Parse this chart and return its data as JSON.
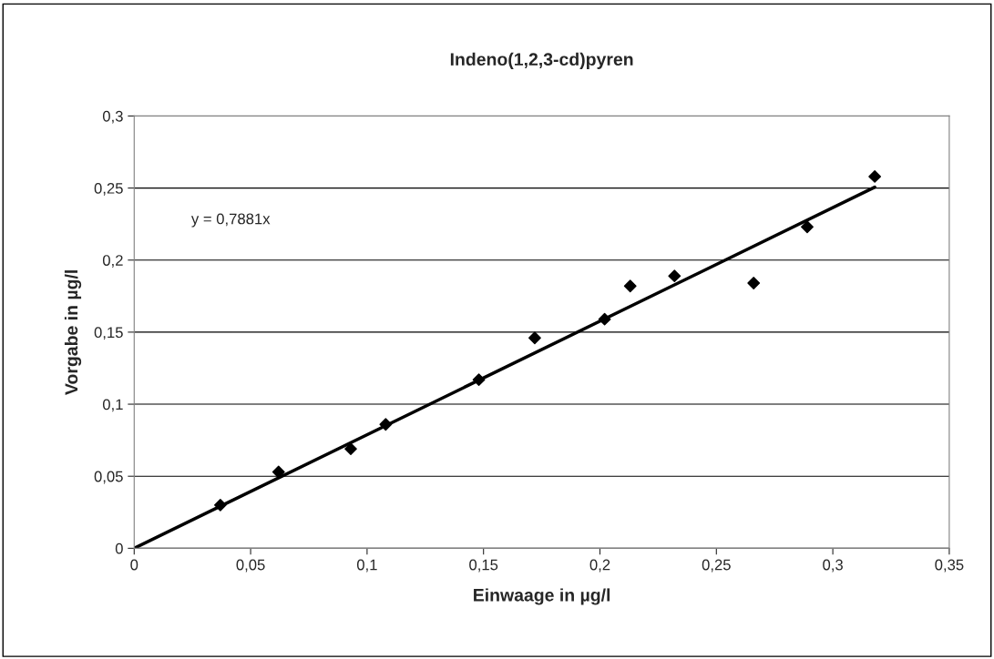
{
  "chart_data": {
    "type": "scatter",
    "title": "Indeno(1,2,3-cd)pyren",
    "xlabel": "Einwaage in µg/l",
    "ylabel": "Vorgabe in µg/l",
    "x": [
      0.037,
      0.062,
      0.093,
      0.108,
      0.148,
      0.172,
      0.202,
      0.213,
      0.232,
      0.266,
      0.289,
      0.318
    ],
    "series": [
      {
        "type": "scatter",
        "color": "#000000",
        "marker": "diamond",
        "values": [
          0.03,
          0.053,
          0.069,
          0.086,
          0.117,
          0.146,
          0.159,
          0.182,
          0.189,
          0.184,
          0.223,
          0.258
        ]
      },
      {
        "type": "line",
        "color": "#000000",
        "marker": "none",
        "x": [
          0,
          0.318
        ],
        "values": [
          0,
          0.2506
        ]
      }
    ],
    "annotations": [
      "y = 0,7881x"
    ],
    "xlim": [
      0,
      0.35
    ],
    "ylim": [
      0,
      0.3
    ],
    "xticks": [
      {
        "value": 0,
        "label": "0"
      },
      {
        "value": 0.05,
        "label": "0,05"
      },
      {
        "value": 0.1,
        "label": "0,1"
      },
      {
        "value": 0.15,
        "label": "0,15"
      },
      {
        "value": 0.2,
        "label": "0,2"
      },
      {
        "value": 0.25,
        "label": "0,25"
      },
      {
        "value": 0.3,
        "label": "0,3"
      },
      {
        "value": 0.35,
        "label": "0,35"
      }
    ],
    "yticks": [
      {
        "value": 0,
        "label": "0"
      },
      {
        "value": 0.05,
        "label": "0,05"
      },
      {
        "value": 0.1,
        "label": "0,1"
      },
      {
        "value": 0.15,
        "label": "0,15"
      },
      {
        "value": 0.2,
        "label": "0,2"
      },
      {
        "value": 0.25,
        "label": "0,25"
      },
      {
        "value": 0.3,
        "label": "0,3"
      }
    ],
    "grid": "y",
    "legend": false
  }
}
